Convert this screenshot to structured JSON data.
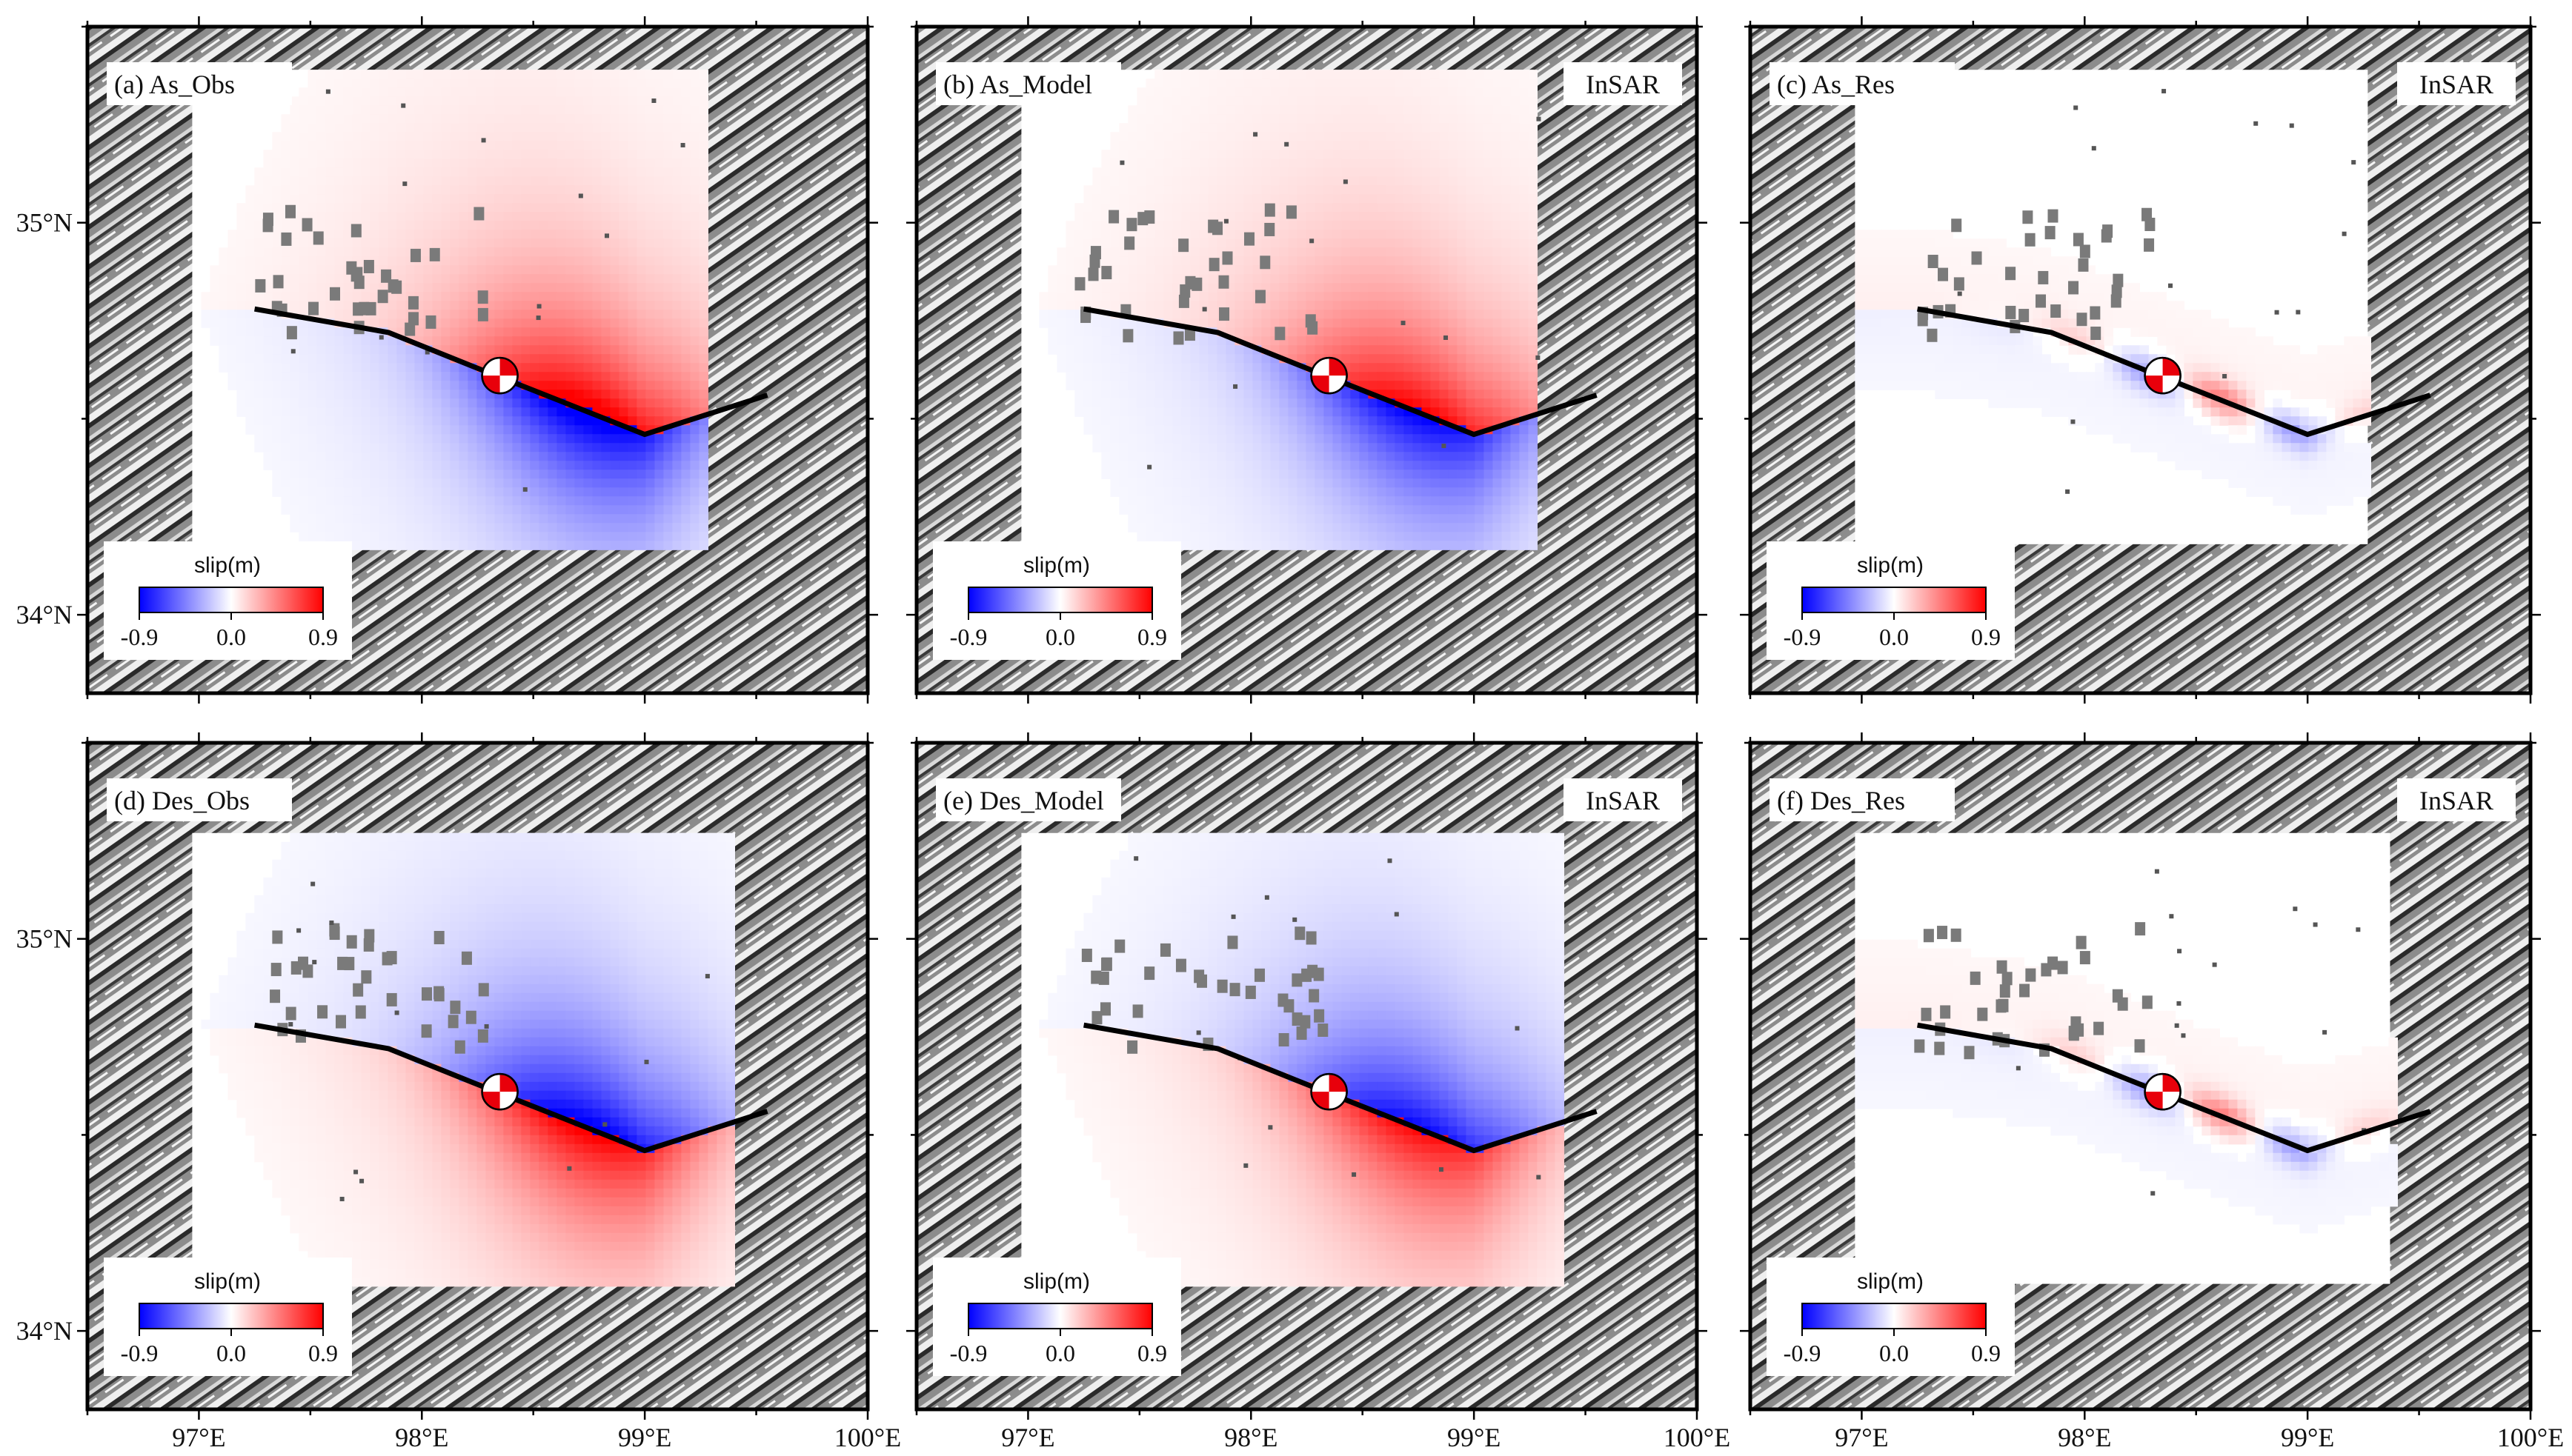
{
  "figure": {
    "panels": [
      {
        "id": "a",
        "label": "(a) As_Obs",
        "tag": "",
        "row": 0,
        "col": 0,
        "field": "obs",
        "track": "asc"
      },
      {
        "id": "b",
        "label": "(b) As_Model",
        "tag": "InSAR",
        "row": 0,
        "col": 1,
        "field": "model",
        "track": "asc"
      },
      {
        "id": "c",
        "label": "(c) As_Res",
        "tag": "InSAR",
        "row": 0,
        "col": 2,
        "field": "res",
        "track": "asc"
      },
      {
        "id": "d",
        "label": "(d) Des_Obs",
        "tag": "",
        "row": 1,
        "col": 0,
        "field": "obs",
        "track": "des"
      },
      {
        "id": "e",
        "label": "(e) Des_Model",
        "tag": "InSAR",
        "row": 1,
        "col": 1,
        "field": "model",
        "track": "des"
      },
      {
        "id": "f",
        "label": "(f) Des_Res",
        "tag": "InSAR",
        "row": 1,
        "col": 2,
        "field": "res",
        "track": "des"
      }
    ],
    "colorbar": {
      "title": "slip(m)",
      "ticks": [
        "-0.9",
        "0.0",
        "0.9"
      ],
      "colors": [
        "#0000ff",
        "#ffffff",
        "#ff0000"
      ]
    },
    "lon_ticks": [
      "97°E",
      "98°E",
      "99°E",
      "100°E"
    ],
    "lat_ticks": [
      "35°N",
      "34°N"
    ],
    "lon_range": [
      96.5,
      100.0
    ],
    "lat_range": [
      33.8,
      35.5
    ],
    "fault_trace": [
      [
        97.25,
        34.78
      ],
      [
        97.85,
        34.72
      ],
      [
        98.2,
        34.64
      ],
      [
        98.6,
        34.55
      ],
      [
        99.0,
        34.46
      ],
      [
        99.55,
        34.56
      ]
    ],
    "epicenter": [
      98.35,
      34.61
    ]
  }
}
